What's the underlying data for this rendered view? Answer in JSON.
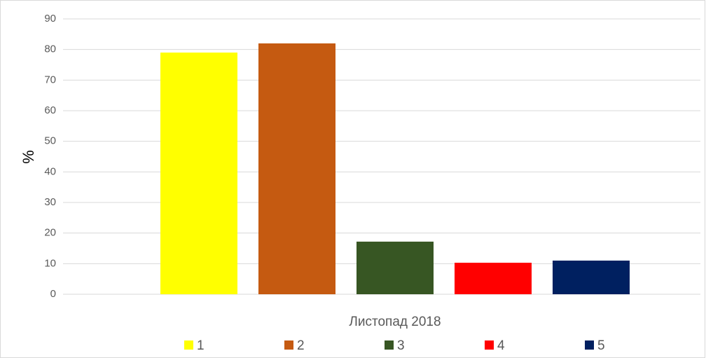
{
  "chart_data": {
    "type": "bar",
    "categories": [
      "Листопад 2018"
    ],
    "series": [
      {
        "name": "1",
        "color": "#ffff00",
        "values": [
          79
        ]
      },
      {
        "name": "2",
        "color": "#c55a11",
        "values": [
          82
        ]
      },
      {
        "name": "3",
        "color": "#375623",
        "values": [
          17.2
        ]
      },
      {
        "name": "4",
        "color": "#ff0000",
        "values": [
          10.3
        ]
      },
      {
        "name": "5",
        "color": "#002060",
        "values": [
          11
        ]
      }
    ],
    "y_label": "%",
    "ylim": [
      0,
      90
    ],
    "yticks": [
      0,
      10,
      20,
      30,
      40,
      50,
      60,
      70,
      80,
      90
    ],
    "grid": true,
    "legend": "bottom"
  }
}
